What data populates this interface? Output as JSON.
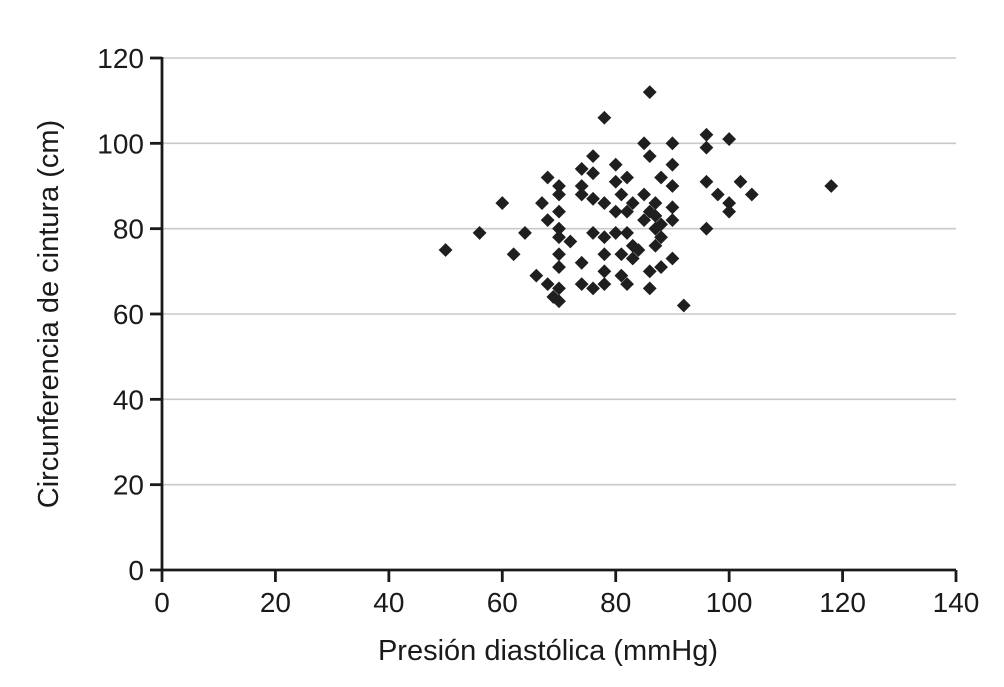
{
  "figure": {
    "background": "#ffffff",
    "marker_color": "#1f1f1f",
    "axis_color": "#1a1a1a",
    "gridline_color": "#c9c9c9",
    "text_color": "#1a1a1a"
  },
  "chart_data": {
    "type": "scatter",
    "title": "",
    "xlabel": "Presión diastólica (mmHg)",
    "ylabel": "Circunferencia de cintura (cm)",
    "xlim": [
      0,
      140
    ],
    "ylim": [
      0,
      120
    ],
    "xticks": [
      0,
      20,
      40,
      60,
      80,
      100,
      120,
      140
    ],
    "yticks": [
      0,
      20,
      40,
      60,
      80,
      100,
      120
    ],
    "grid": "horizontal-only",
    "legend": "none",
    "marker": "diamond",
    "points": [
      [
        50,
        75
      ],
      [
        56,
        79
      ],
      [
        60,
        86
      ],
      [
        62,
        74
      ],
      [
        64,
        79
      ],
      [
        66,
        69
      ],
      [
        67,
        86
      ],
      [
        68,
        92
      ],
      [
        68,
        82
      ],
      [
        70,
        90
      ],
      [
        70,
        88
      ],
      [
        70,
        84
      ],
      [
        70,
        80
      ],
      [
        70,
        78
      ],
      [
        70,
        74
      ],
      [
        70,
        71
      ],
      [
        68,
        67
      ],
      [
        70,
        66
      ],
      [
        69,
        64
      ],
      [
        70,
        63
      ],
      [
        72,
        77
      ],
      [
        74,
        94
      ],
      [
        74,
        90
      ],
      [
        74,
        88
      ],
      [
        74,
        72
      ],
      [
        74,
        67
      ],
      [
        76,
        97
      ],
      [
        76,
        93
      ],
      [
        76,
        87
      ],
      [
        76,
        79
      ],
      [
        76,
        66
      ],
      [
        78,
        106
      ],
      [
        78,
        86
      ],
      [
        78,
        78
      ],
      [
        78,
        74
      ],
      [
        78,
        70
      ],
      [
        78,
        67
      ],
      [
        80,
        95
      ],
      [
        80,
        91
      ],
      [
        82,
        92
      ],
      [
        81,
        88
      ],
      [
        83,
        86
      ],
      [
        80,
        84
      ],
      [
        82,
        84
      ],
      [
        80,
        79
      ],
      [
        82,
        79
      ],
      [
        83,
        76
      ],
      [
        84,
        75
      ],
      [
        81,
        74
      ],
      [
        83,
        73
      ],
      [
        81,
        69
      ],
      [
        82,
        67
      ],
      [
        86,
        112
      ],
      [
        85,
        100
      ],
      [
        90,
        100
      ],
      [
        86,
        97
      ],
      [
        90,
        95
      ],
      [
        88,
        92
      ],
      [
        90,
        90
      ],
      [
        85,
        88
      ],
      [
        87,
        86
      ],
      [
        86,
        84
      ],
      [
        87,
        83
      ],
      [
        85,
        82
      ],
      [
        88,
        81
      ],
      [
        87,
        80
      ],
      [
        88,
        78
      ],
      [
        87,
        76
      ],
      [
        90,
        85
      ],
      [
        90,
        82
      ],
      [
        90,
        73
      ],
      [
        88,
        71
      ],
      [
        86,
        70
      ],
      [
        86,
        66
      ],
      [
        92,
        62
      ],
      [
        96,
        102
      ],
      [
        96,
        99
      ],
      [
        100,
        101
      ],
      [
        96,
        91
      ],
      [
        98,
        88
      ],
      [
        100,
        86
      ],
      [
        100,
        84
      ],
      [
        102,
        91
      ],
      [
        104,
        88
      ],
      [
        96,
        80
      ],
      [
        118,
        90
      ]
    ]
  }
}
